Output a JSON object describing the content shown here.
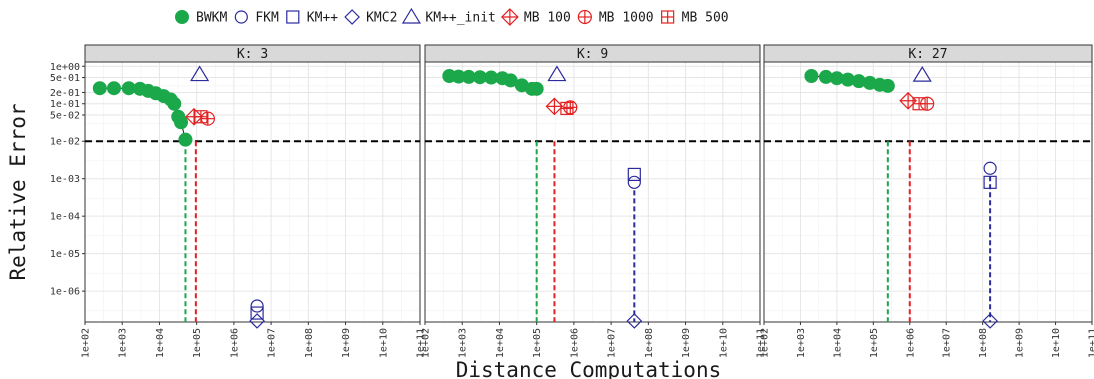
{
  "chart_data": {
    "type": "scatter",
    "xlabel": "Distance Computations",
    "ylabel": "Relative Error",
    "x_scale": "log10",
    "y_scale": "log10",
    "xlim": [
      100,
      100000000000
    ],
    "ylim": [
      1.5e-07,
      1.3
    ],
    "x_ticks": [
      {
        "v": 100,
        "label": "1e+02"
      },
      {
        "v": 1000,
        "label": "1e+03"
      },
      {
        "v": 10000,
        "label": "1e+04"
      },
      {
        "v": 100000,
        "label": "1e+05"
      },
      {
        "v": 1000000,
        "label": "1e+06"
      },
      {
        "v": 10000000,
        "label": "1e+07"
      },
      {
        "v": 100000000,
        "label": "1e+08"
      },
      {
        "v": 1000000000,
        "label": "1e+09"
      },
      {
        "v": 10000000000,
        "label": "1e+10"
      },
      {
        "v": 100000000000,
        "label": "1e+11"
      }
    ],
    "y_ticks": [
      {
        "v": 1,
        "label": "1e+00"
      },
      {
        "v": 0.5,
        "label": "5e-01"
      },
      {
        "v": 0.2,
        "label": "2e-01"
      },
      {
        "v": 0.1,
        "label": "1e-01"
      },
      {
        "v": 0.05,
        "label": "5e-02"
      },
      {
        "v": 0.01,
        "label": "1e-02"
      },
      {
        "v": 0.001,
        "label": "1e-03"
      },
      {
        "v": 0.0001,
        "label": "1e-04"
      },
      {
        "v": 1e-05,
        "label": "1e-05"
      },
      {
        "v": 1e-06,
        "label": "1e-06"
      }
    ],
    "threshold": 0.01,
    "grid": true,
    "legend_position": "top",
    "legend": [
      {
        "name": "BWKM",
        "marker": "filled-circle",
        "color": "#1aa84a"
      },
      {
        "name": "FKM",
        "marker": "circle",
        "color": "#2b2b9e"
      },
      {
        "name": "KM++",
        "marker": "square",
        "color": "#2b2b9e"
      },
      {
        "name": "KMC2",
        "marker": "diamond",
        "color": "#2b2b9e"
      },
      {
        "name": "KM++_init",
        "marker": "triangle",
        "color": "#2b2b9e"
      },
      {
        "name": "MB 100",
        "marker": "diamond-plus",
        "color": "#e32121"
      },
      {
        "name": "MB 1000",
        "marker": "circle-plus",
        "color": "#e32121"
      },
      {
        "name": "MB 500",
        "marker": "square-plus",
        "color": "#e32121"
      }
    ],
    "colors": {
      "bwkm": "#1aa84a",
      "classic": "#2b2b9e",
      "mb": "#e32121",
      "threshold": "#000000"
    },
    "facets": [
      {
        "label": "K: 3",
        "bwkm_curve": [
          [
            250,
            0.26
          ],
          [
            600,
            0.26
          ],
          [
            1500,
            0.26
          ],
          [
            3000,
            0.25
          ],
          [
            5000,
            0.22
          ],
          [
            8000,
            0.19
          ],
          [
            13000,
            0.16
          ],
          [
            20000,
            0.13
          ],
          [
            25000,
            0.1
          ],
          [
            32000,
            0.045
          ],
          [
            38000,
            0.032
          ],
          [
            50000,
            0.011
          ]
        ],
        "bwkm_drop_x": 50000,
        "mb_drop_x": 95000,
        "classic_drop_x": null,
        "points": {
          "KM++_init": [
            120000,
            0.6
          ],
          "MB 100": [
            85000,
            0.045
          ],
          "MB 1000": [
            200000,
            0.04
          ],
          "MB 500": [
            130000,
            0.045
          ],
          "FKM": [
            4200000,
            4e-07
          ],
          "KM++": [
            4200000,
            2.6e-07
          ],
          "KMC2": [
            4200000,
            1.6e-07
          ]
        }
      },
      {
        "label": "K: 9",
        "bwkm_curve": [
          [
            450,
            0.55
          ],
          [
            800,
            0.53
          ],
          [
            1500,
            0.52
          ],
          [
            3000,
            0.51
          ],
          [
            6000,
            0.5
          ],
          [
            12000,
            0.48
          ],
          [
            20000,
            0.42
          ],
          [
            40000,
            0.31
          ],
          [
            75000,
            0.25
          ],
          [
            100000,
            0.25
          ]
        ],
        "bwkm_drop_x": 100000,
        "mb_drop_x": 300000,
        "classic_drop_x": 42000000,
        "points": {
          "KM++_init": [
            350000,
            0.6
          ],
          "MB 100": [
            300000,
            0.085
          ],
          "MB 1000": [
            800000,
            0.08
          ],
          "MB 500": [
            650000,
            0.075
          ],
          "FKM": [
            42000000,
            0.0008
          ],
          "KM++": [
            42000000,
            0.0013
          ],
          "KMC2": [
            42000000,
            1.6e-07
          ]
        }
      },
      {
        "label": "K: 27",
        "bwkm_curve": [
          [
            2000,
            0.55
          ],
          [
            5000,
            0.52
          ],
          [
            10000,
            0.48
          ],
          [
            20000,
            0.44
          ],
          [
            40000,
            0.4
          ],
          [
            80000,
            0.36
          ],
          [
            150000,
            0.32
          ],
          [
            250000,
            0.3
          ]
        ],
        "bwkm_drop_x": 250000,
        "mb_drop_x": 1000000,
        "classic_drop_x": 160000000,
        "points": {
          "KM++_init": [
            2200000,
            0.58
          ],
          "MB 100": [
            900000,
            0.12
          ],
          "MB 1000": [
            3000000,
            0.1
          ],
          "MB 500": [
            1800000,
            0.1
          ],
          "FKM": [
            160000000,
            0.0019
          ],
          "KM++": [
            160000000,
            0.0008
          ],
          "KMC2": [
            160000000,
            1.6e-07
          ]
        }
      }
    ]
  }
}
